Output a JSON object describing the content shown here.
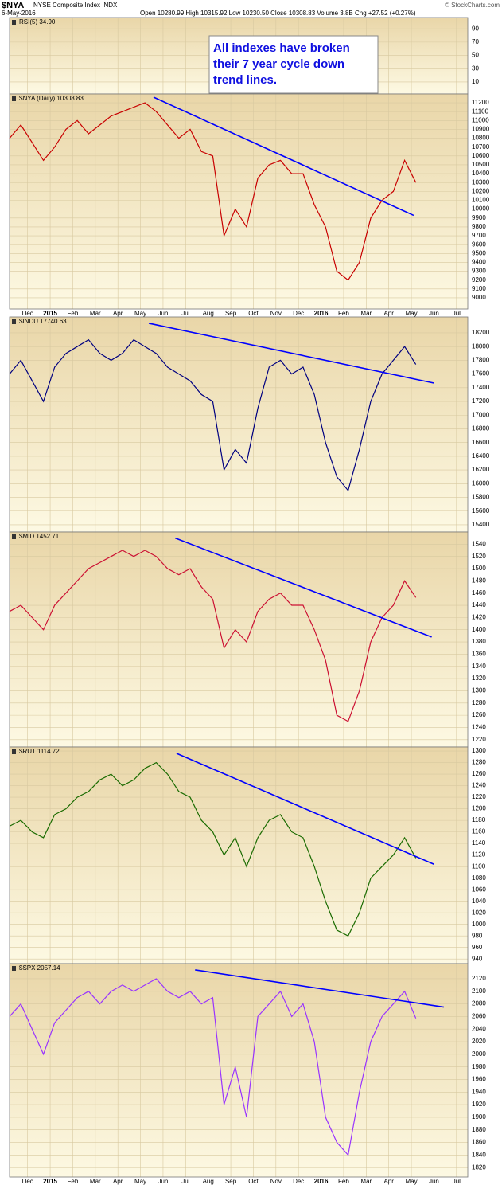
{
  "header": {
    "symbol": "$NYA",
    "name": "NYSE Composite Index INDX",
    "date": "6-May-2016",
    "quote": "Open 10280.99 High 10315.92 Low 10230.50 Close 10308.83 Volume 3.8B Chg +27.52 (+0.27%)",
    "source": "© StockCharts.com"
  },
  "chart_data": [
    {
      "type": "line",
      "title": "RSI(5) 34.90",
      "ylim": [
        -8,
        107
      ],
      "yticks": [
        10,
        30,
        50,
        70,
        90
      ],
      "xlim": [
        -0.8,
        19.5
      ],
      "annotation": [
        "All indexes have broken",
        "their 7 year cycle down",
        "trend lines."
      ]
    },
    {
      "type": "line",
      "title": "$NYA (Daily) 10308.83",
      "ylim": [
        8874,
        11299
      ],
      "xlim": [
        -0.8,
        19.5
      ],
      "yticks": [
        9000,
        9100,
        9200,
        9300,
        9400,
        9500,
        9600,
        9700,
        9800,
        9900,
        10000,
        10100,
        10200,
        10300,
        10400,
        10500,
        10600,
        10700,
        10800,
        10900,
        11000,
        11100,
        11200
      ],
      "xticks": [
        {
          "value": 0,
          "label": "Dec"
        },
        {
          "value": 1,
          "label": "2015"
        },
        {
          "value": 2,
          "label": "Feb"
        },
        {
          "value": 3,
          "label": "Mar"
        },
        {
          "value": 4,
          "label": "Apr"
        },
        {
          "value": 5,
          "label": "May"
        },
        {
          "value": 6,
          "label": "Jun"
        },
        {
          "value": 7,
          "label": "Jul"
        },
        {
          "value": 8,
          "label": "Aug"
        },
        {
          "value": 9,
          "label": "Sep"
        },
        {
          "value": 10,
          "label": "Oct"
        },
        {
          "value": 11,
          "label": "Nov"
        },
        {
          "value": 12,
          "label": "Dec"
        },
        {
          "value": 13,
          "label": "2016"
        },
        {
          "value": 14,
          "label": "Feb"
        },
        {
          "value": 15,
          "label": "Mar"
        },
        {
          "value": 16,
          "label": "Apr"
        },
        {
          "value": 17,
          "label": "May"
        },
        {
          "value": 18,
          "label": "Jun"
        },
        {
          "value": 19,
          "label": "Jul"
        }
      ],
      "x": [
        -0.8,
        -0.3,
        0.2,
        0.7,
        1.2,
        1.7,
        2.2,
        2.7,
        3.2,
        3.7,
        4.2,
        4.7,
        5.2,
        5.7,
        6.2,
        6.7,
        7.2,
        7.7,
        8.2,
        8.7,
        9.2,
        9.7,
        10.2,
        10.7,
        11.2,
        11.7,
        12.2,
        12.7,
        13.2,
        13.7,
        14.2,
        14.7,
        15.2,
        15.7,
        16.2,
        16.7,
        17.2
      ],
      "series": [
        {
          "color": "#c80000",
          "values": [
            10800,
            10950,
            10750,
            10550,
            10700,
            10900,
            11000,
            10850,
            10950,
            11050,
            11100,
            11150,
            11200,
            11100,
            10950,
            10800,
            10900,
            10650,
            10600,
            9700,
            10000,
            9800,
            10350,
            10500,
            10550,
            10400,
            10400,
            10050,
            9800,
            9300,
            9200,
            9400,
            9900,
            10100,
            10200,
            10550,
            10300
          ]
        }
      ],
      "trendline": {
        "color": "#0000ff",
        "x": [
          5.58,
          17.1
        ],
        "y": [
          11263,
          9930
        ]
      }
    },
    {
      "type": "line",
      "title": "$INDU 17740.63",
      "ylim": [
        15295,
        18432
      ],
      "xlim": [
        -0.8,
        19.5
      ],
      "yticks": [
        15400,
        15600,
        15800,
        16000,
        16200,
        16400,
        16600,
        16800,
        17000,
        17200,
        17400,
        17600,
        17800,
        18000,
        18200
      ],
      "x": [
        -0.8,
        -0.3,
        0.2,
        0.7,
        1.2,
        1.7,
        2.2,
        2.7,
        3.2,
        3.7,
        4.2,
        4.7,
        5.2,
        5.7,
        6.2,
        6.7,
        7.2,
        7.7,
        8.2,
        8.7,
        9.2,
        9.7,
        10.2,
        10.7,
        11.2,
        11.7,
        12.2,
        12.7,
        13.2,
        13.7,
        14.2,
        14.7,
        15.2,
        15.7,
        16.2,
        16.7,
        17.2
      ],
      "series": [
        {
          "color": "#000080",
          "values": [
            17600,
            17800,
            17500,
            17200,
            17700,
            17900,
            18000,
            18100,
            17900,
            17800,
            17900,
            18100,
            18000,
            17900,
            17700,
            17600,
            17500,
            17300,
            17200,
            16200,
            16500,
            16300,
            17100,
            17700,
            17800,
            17600,
            17700,
            17300,
            16600,
            16100,
            15900,
            16500,
            17200,
            17600,
            17800,
            18000,
            17740
          ]
        }
      ],
      "trendline": {
        "color": "#0000ff",
        "x": [
          5.37,
          18.0
        ],
        "y": [
          18340,
          17468
        ]
      }
    },
    {
      "type": "line",
      "title": "$MID 1452.71",
      "ylim": [
        1208,
        1560
      ],
      "xlim": [
        -0.8,
        19.5
      ],
      "yticks": [
        1220,
        1240,
        1260,
        1280,
        1300,
        1320,
        1340,
        1360,
        1380,
        1400,
        1420,
        1440,
        1460,
        1480,
        1500,
        1520,
        1540
      ],
      "x": [
        -0.8,
        -0.3,
        0.2,
        0.7,
        1.2,
        1.7,
        2.2,
        2.7,
        3.2,
        3.7,
        4.2,
        4.7,
        5.2,
        5.7,
        6.2,
        6.7,
        7.2,
        7.7,
        8.2,
        8.7,
        9.2,
        9.7,
        10.2,
        10.7,
        11.2,
        11.7,
        12.2,
        12.7,
        13.2,
        13.7,
        14.2,
        14.7,
        15.2,
        15.7,
        16.2,
        16.7,
        17.2
      ],
      "series": [
        {
          "color": "#cc1133",
          "values": [
            1430,
            1440,
            1420,
            1400,
            1440,
            1460,
            1480,
            1500,
            1510,
            1520,
            1530,
            1520,
            1530,
            1520,
            1500,
            1490,
            1500,
            1470,
            1450,
            1370,
            1400,
            1380,
            1430,
            1450,
            1460,
            1440,
            1440,
            1400,
            1350,
            1260,
            1250,
            1300,
            1380,
            1420,
            1440,
            1480,
            1452.71
          ]
        }
      ],
      "trendline": {
        "color": "#0000ff",
        "x": [
          6.54,
          17.9
        ],
        "y": [
          1550,
          1388
        ]
      }
    },
    {
      "type": "line",
      "title": "$RUT 1114.72",
      "ylim": [
        932,
        1307
      ],
      "xlim": [
        -0.8,
        19.5
      ],
      "yticks": [
        940,
        960,
        980,
        1000,
        1020,
        1040,
        1060,
        1080,
        1100,
        1120,
        1140,
        1160,
        1180,
        1200,
        1220,
        1240,
        1260,
        1280,
        1300
      ],
      "x": [
        -0.8,
        -0.3,
        0.2,
        0.7,
        1.2,
        1.7,
        2.2,
        2.7,
        3.2,
        3.7,
        4.2,
        4.7,
        5.2,
        5.7,
        6.2,
        6.7,
        7.2,
        7.7,
        8.2,
        8.7,
        9.2,
        9.7,
        10.2,
        10.7,
        11.2,
        11.7,
        12.2,
        12.7,
        13.2,
        13.7,
        14.2,
        14.7,
        15.2,
        15.7,
        16.2,
        16.7,
        17.2
      ],
      "series": [
        {
          "color": "#1a6b00",
          "values": [
            1170,
            1180,
            1160,
            1150,
            1190,
            1200,
            1220,
            1230,
            1250,
            1260,
            1240,
            1250,
            1270,
            1280,
            1260,
            1230,
            1220,
            1180,
            1160,
            1120,
            1150,
            1100,
            1150,
            1180,
            1190,
            1160,
            1150,
            1100,
            1040,
            990,
            980,
            1020,
            1080,
            1100,
            1120,
            1150,
            1114.72
          ]
        }
      ],
      "trendline": {
        "color": "#0000ff",
        "x": [
          6.6,
          18.0
        ],
        "y": [
          1296,
          1104
        ]
      }
    },
    {
      "type": "line",
      "title": "$SPX 2057.14",
      "ylim": [
        1805,
        2144
      ],
      "xlim": [
        -0.8,
        19.5
      ],
      "yticks": [
        1820,
        1840,
        1860,
        1880,
        1900,
        1920,
        1940,
        1960,
        1980,
        2000,
        2020,
        2040,
        2060,
        2080,
        2100,
        2120
      ],
      "xticks": [
        {
          "value": 0,
          "label": "Dec"
        },
        {
          "value": 1,
          "label": "2015"
        },
        {
          "value": 2,
          "label": "Feb"
        },
        {
          "value": 3,
          "label": "Mar"
        },
        {
          "value": 4,
          "label": "Apr"
        },
        {
          "value": 5,
          "label": "May"
        },
        {
          "value": 6,
          "label": "Jun"
        },
        {
          "value": 7,
          "label": "Jul"
        },
        {
          "value": 8,
          "label": "Aug"
        },
        {
          "value": 9,
          "label": "Sep"
        },
        {
          "value": 10,
          "label": "Oct"
        },
        {
          "value": 11,
          "label": "Nov"
        },
        {
          "value": 12,
          "label": "Dec"
        },
        {
          "value": 13,
          "label": "2016"
        },
        {
          "value": 14,
          "label": "Feb"
        },
        {
          "value": 15,
          "label": "Mar"
        },
        {
          "value": 16,
          "label": "Apr"
        },
        {
          "value": 17,
          "label": "May"
        },
        {
          "value": 18,
          "label": "Jun"
        },
        {
          "value": 19,
          "label": "Jul"
        }
      ],
      "x": [
        -0.8,
        -0.3,
        0.2,
        0.7,
        1.2,
        1.7,
        2.2,
        2.7,
        3.2,
        3.7,
        4.2,
        4.7,
        5.2,
        5.7,
        6.2,
        6.7,
        7.2,
        7.7,
        8.2,
        8.7,
        9.2,
        9.7,
        10.2,
        10.7,
        11.2,
        11.7,
        12.2,
        12.7,
        13.2,
        13.7,
        14.2,
        14.7,
        15.2,
        15.7,
        16.2,
        16.7,
        17.2
      ],
      "series": [
        {
          "color": "#9933ff",
          "values": [
            2060,
            2080,
            2040,
            2000,
            2050,
            2070,
            2090,
            2100,
            2080,
            2100,
            2110,
            2100,
            2110,
            2120,
            2100,
            2090,
            2100,
            2080,
            2090,
            1920,
            1980,
            1900,
            2060,
            2080,
            2100,
            2060,
            2080,
            2020,
            1900,
            1860,
            1840,
            1940,
            2020,
            2060,
            2080,
            2100,
            2057.14
          ]
        }
      ],
      "trendline": {
        "color": "#0000ff",
        "x": [
          7.42,
          18.44
        ],
        "y": [
          2134,
          2075
        ]
      }
    }
  ]
}
